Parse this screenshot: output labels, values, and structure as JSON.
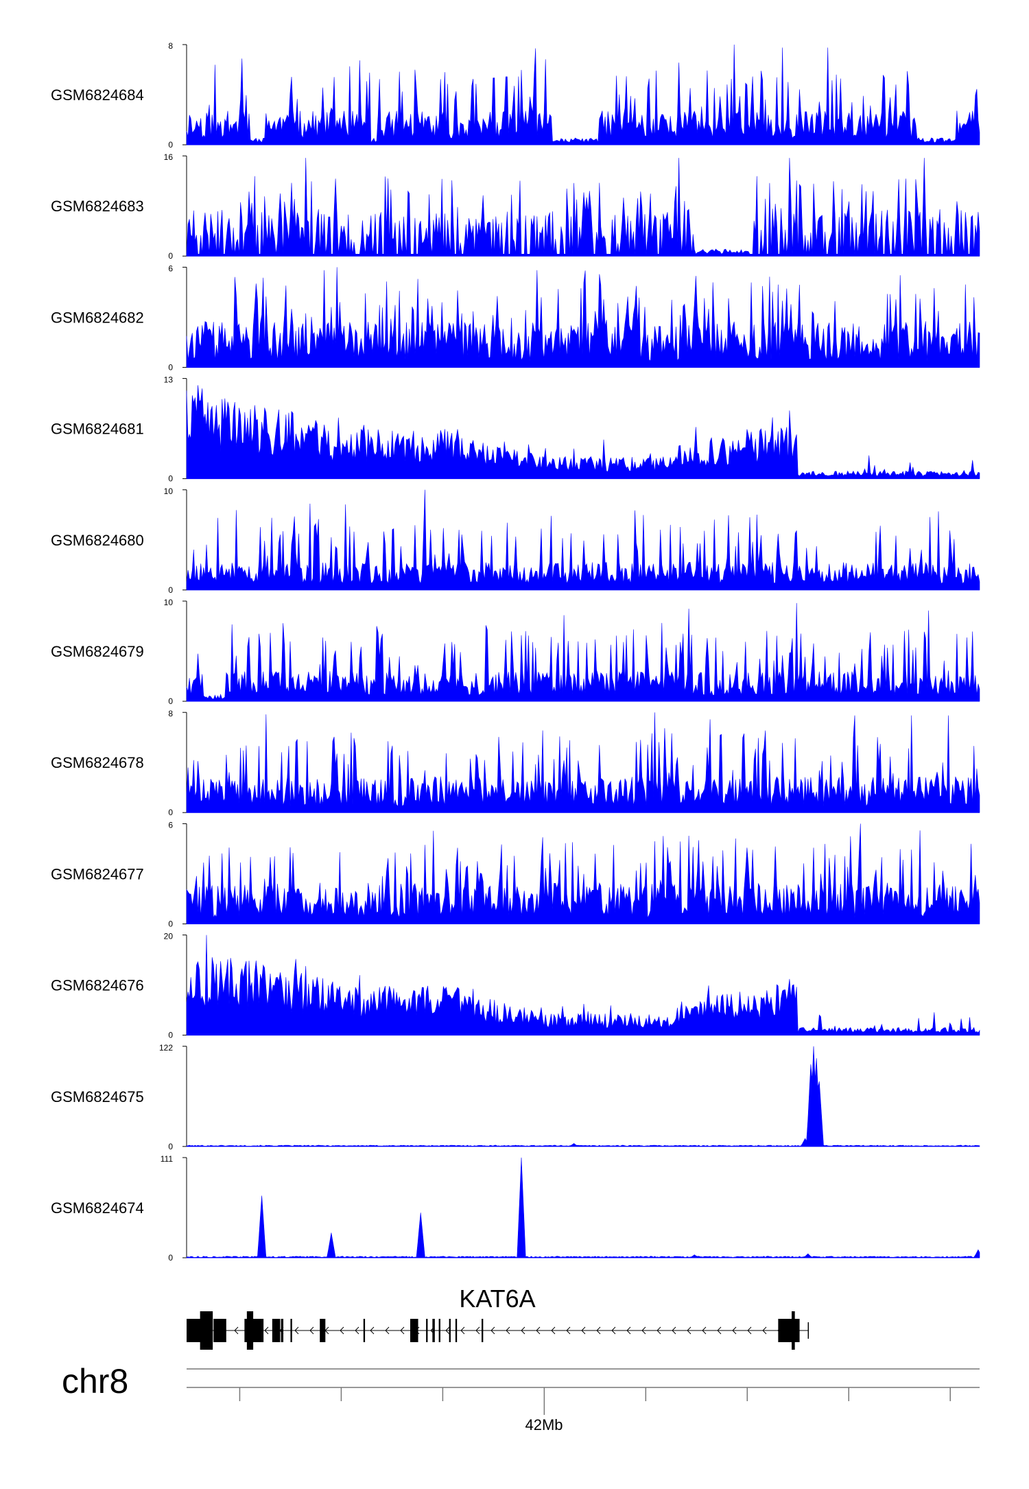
{
  "chart_data": {
    "type": "area",
    "title": "",
    "chromosome": "chr8",
    "xlabel": "",
    "ylabel": "",
    "x_tick_label": "42Mb",
    "color": "#0000ff",
    "grid": false,
    "tracks": [
      {
        "name": "GSM6824684",
        "ymax": 8,
        "ylim": [
          0,
          8
        ],
        "ymin_label": "0",
        "ymax_label": "8",
        "pattern": "noise",
        "seed": 11,
        "noise_level": 0.28,
        "spikes": [
          [
            0.07,
            0.86
          ],
          [
            0.23,
            0.72
          ],
          [
            0.69,
            1.0
          ],
          [
            0.82,
            0.7
          ]
        ],
        "dips": [
          [
            0.08,
            0.1
          ],
          [
            0.23,
            0.24
          ],
          [
            0.46,
            0.52
          ],
          [
            0.92,
            0.97
          ]
        ]
      },
      {
        "name": "GSM6824683",
        "ymax": 16,
        "ylim": [
          0,
          16
        ],
        "ymin_label": "0",
        "ymax_label": "16",
        "pattern": "sparse",
        "seed": 23,
        "noise_level": 0.35,
        "spikes": [
          [
            0.15,
            0.98
          ],
          [
            0.62,
            0.98
          ],
          [
            0.76,
            0.98
          ],
          [
            0.93,
            0.98
          ]
        ],
        "dips": [
          [
            0.64,
            0.71
          ]
        ]
      },
      {
        "name": "GSM6824682",
        "ymax": 6,
        "ylim": [
          0,
          6
        ],
        "ymin_label": "0",
        "ymax_label": "6",
        "pattern": "noise",
        "seed": 37,
        "noise_level": 0.4,
        "spikes": [
          [
            0.19,
            1.0
          ],
          [
            0.52,
            0.93
          ],
          [
            0.9,
            0.92
          ]
        ],
        "dips": []
      },
      {
        "name": "GSM6824681",
        "ymax": 13,
        "ylim": [
          0,
          13
        ],
        "ymin_label": "0",
        "ymax_label": "13",
        "pattern": "broad",
        "seed": 41,
        "noise_level": 0.3,
        "spikes": [
          [
            0.02,
            0.9
          ],
          [
            0.76,
            0.68
          ]
        ],
        "dips": []
      },
      {
        "name": "GSM6824680",
        "ymax": 10,
        "ylim": [
          0,
          10
        ],
        "ymin_label": "0",
        "ymax_label": "10",
        "pattern": "noise",
        "seed": 53,
        "noise_level": 0.22,
        "spikes": [
          [
            0.04,
            0.72
          ],
          [
            0.3,
            1.0
          ],
          [
            0.61,
            0.65
          ]
        ],
        "dips": []
      },
      {
        "name": "GSM6824679",
        "ymax": 10,
        "ylim": [
          0,
          10
        ],
        "ymin_label": "0",
        "ymax_label": "10",
        "pattern": "noise",
        "seed": 67,
        "noise_level": 0.24,
        "spikes": [
          [
            0.24,
            0.75
          ],
          [
            0.77,
            0.98
          ]
        ],
        "dips": [
          [
            0.02,
            0.05
          ]
        ]
      },
      {
        "name": "GSM6824678",
        "ymax": 8,
        "ylim": [
          0,
          8
        ],
        "ymin_label": "0",
        "ymax_label": "8",
        "pattern": "noise",
        "seed": 79,
        "noise_level": 0.3,
        "spikes": [
          [
            0.1,
            0.98
          ],
          [
            0.59,
            1.0
          ],
          [
            0.66,
            0.93
          ]
        ],
        "dips": []
      },
      {
        "name": "GSM6824677",
        "ymax": 6,
        "ylim": [
          0,
          6
        ],
        "ymin_label": "0",
        "ymax_label": "6",
        "pattern": "noise",
        "seed": 83,
        "noise_level": 0.35,
        "spikes": [
          [
            0.79,
            0.76
          ],
          [
            0.85,
            1.0
          ]
        ],
        "dips": []
      },
      {
        "name": "GSM6824676",
        "ymax": 20,
        "ylim": [
          0,
          20
        ],
        "ymin_label": "0",
        "ymax_label": "20",
        "pattern": "broad",
        "seed": 97,
        "noise_level": 0.18,
        "spikes": [
          [
            0.025,
            1.0
          ],
          [
            0.076,
            0.65
          ],
          [
            0.76,
            0.56
          ]
        ],
        "dips": []
      },
      {
        "name": "GSM6824675",
        "ymax": 122,
        "ylim": [
          0,
          122
        ],
        "ymin_label": "0",
        "ymax_label": "122",
        "pattern": "peaks",
        "seed": 101,
        "noise_level": 0.01,
        "spikes": [
          [
            0.488,
            0.03
          ],
          [
            0.78,
            0.08
          ],
          [
            0.787,
            0.82
          ],
          [
            0.79,
            1.0
          ],
          [
            0.794,
            0.88
          ],
          [
            0.798,
            0.65
          ]
        ],
        "dips": []
      },
      {
        "name": "GSM6824674",
        "ymax": 111,
        "ylim": [
          0,
          111
        ],
        "ymin_label": "0",
        "ymax_label": "111",
        "pattern": "peaks",
        "seed": 113,
        "noise_level": 0.012,
        "spikes": [
          [
            0.095,
            0.62
          ],
          [
            0.182,
            0.25
          ],
          [
            0.296,
            0.45
          ],
          [
            0.422,
            1.0
          ],
          [
            0.641,
            0.03
          ],
          [
            0.783,
            0.04
          ],
          [
            0.999,
            0.08
          ]
        ],
        "dips": []
      }
    ],
    "gene": {
      "name": "KAT6A",
      "strand": "-",
      "exons": [
        [
          0.0,
          0.018
        ],
        [
          0.017,
          0.033
        ],
        [
          0.034,
          0.05
        ],
        [
          0.073,
          0.097
        ],
        [
          0.076,
          0.084
        ],
        [
          0.108,
          0.118
        ],
        [
          0.119,
          0.122
        ],
        [
          0.131,
          0.133
        ],
        [
          0.168,
          0.175
        ],
        [
          0.223,
          0.225
        ],
        [
          0.282,
          0.292
        ],
        [
          0.302,
          0.304
        ],
        [
          0.31,
          0.313
        ],
        [
          0.318,
          0.32
        ],
        [
          0.331,
          0.333
        ],
        [
          0.339,
          0.341
        ],
        [
          0.372,
          0.374
        ],
        [
          0.746,
          0.773
        ],
        [
          0.763,
          0.767
        ]
      ],
      "thick_ranges": [
        [
          0.017,
          0.033
        ],
        [
          0.076,
          0.084
        ],
        [
          0.763,
          0.767
        ]
      ],
      "end": 0.784
    },
    "axis": {
      "minor_ticks": [
        0.067,
        0.195,
        0.323,
        0.451,
        0.579,
        0.707,
        0.835,
        0.963
      ],
      "major_tick": 0.451
    }
  }
}
